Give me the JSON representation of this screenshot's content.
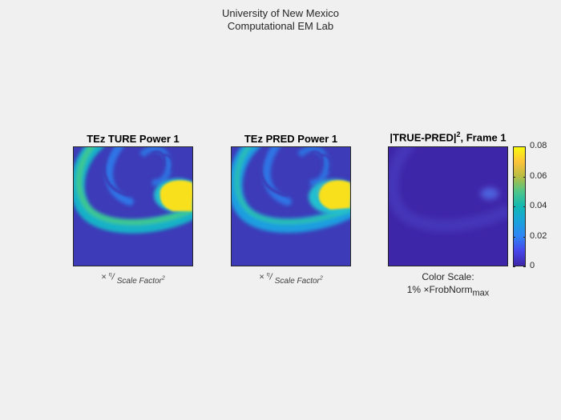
{
  "header": {
    "line1": "University of New Mexico",
    "line2": "Computational EM Lab"
  },
  "panels": [
    {
      "title": "TEz  TURE Power 1",
      "note_times": "×",
      "note_eta": "η",
      "note_slash": "/",
      "note_den": "Scale Factor",
      "note_exp": "2"
    },
    {
      "title": "TEz  PRED Power 1",
      "note_times": "×",
      "note_eta": "η",
      "note_slash": "/",
      "note_den": "Scale Factor",
      "note_exp": "2"
    },
    {
      "title_main": "|TRUE-PRED|",
      "title_exp": "2",
      "title_tail": ", Frame 1",
      "caption_line1": "Color Scale:",
      "caption_prefix": "1% ",
      "caption_times": "×",
      "caption_norm": "FrobNorm",
      "caption_sub": "max"
    }
  ],
  "colormap": "parula",
  "colors": {
    "background": "#f0f0f0",
    "field_low": "#3d3bb8",
    "field_high": "#f9e41f"
  },
  "chart_data": {
    "type": "heatmap",
    "colorbar": {
      "range": [
        0,
        0.08
      ],
      "ticks": [
        0,
        0.02,
        0.04,
        0.06,
        0.08
      ],
      "tick_labels": [
        "0",
        "0.02",
        "0.04",
        "0.06",
        "0.08"
      ],
      "placement": "right of third panel"
    }
  }
}
